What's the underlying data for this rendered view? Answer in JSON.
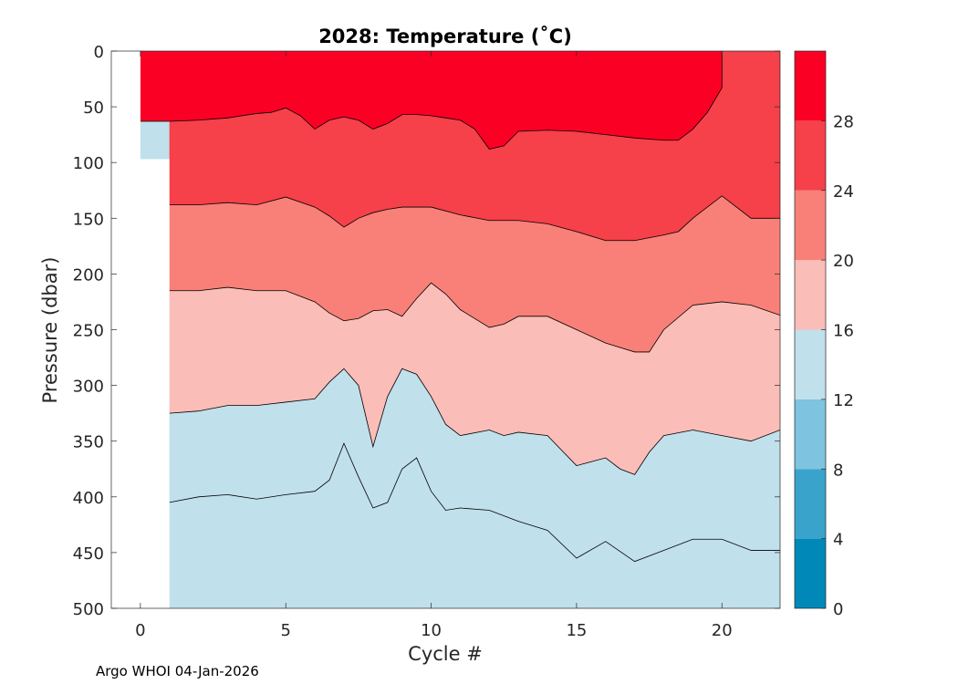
{
  "chart_data": {
    "type": "filled-contour",
    "title": "2028:  Temperature (˚C)",
    "xlabel": "Cycle #",
    "ylabel": "Pressure (dbar)",
    "xlim": [
      -1,
      22
    ],
    "ylim": [
      0,
      500
    ],
    "y_reversed": true,
    "xticks": [
      0,
      5,
      10,
      15,
      20
    ],
    "yticks": [
      0,
      50,
      100,
      150,
      200,
      250,
      300,
      350,
      400,
      450,
      500
    ],
    "colorbar": {
      "ticks": [
        0,
        4,
        8,
        12,
        16,
        20,
        24,
        28
      ],
      "range": [
        0,
        32
      ],
      "bands": [
        {
          "from": 0,
          "to": 4,
          "color": "#0089b8"
        },
        {
          "from": 4,
          "to": 8,
          "color": "#3aa3cb"
        },
        {
          "from": 8,
          "to": 12,
          "color": "#7ec3df"
        },
        {
          "from": 12,
          "to": 16,
          "color": "#c0e0ec"
        },
        {
          "from": 16,
          "to": 20,
          "color": "#fbbdb7"
        },
        {
          "from": 20,
          "to": 24,
          "color": "#f88078"
        },
        {
          "from": 24,
          "to": 28,
          "color": "#f6404a"
        },
        {
          "from": 28,
          "to": 32,
          "color": "#fb0025"
        }
      ]
    },
    "data_coverage": [
      {
        "cycle": 0,
        "max_pressure": 97
      },
      {
        "cycle": 1,
        "max_pressure": 500
      }
    ],
    "isotherms": [
      {
        "temp": 28,
        "points": [
          [
            0,
            63
          ],
          [
            1,
            63
          ],
          [
            2,
            62
          ],
          [
            3,
            60
          ],
          [
            4,
            56
          ],
          [
            4.5,
            55
          ],
          [
            5,
            51
          ],
          [
            5.5,
            58
          ],
          [
            6,
            70
          ],
          [
            6.5,
            62
          ],
          [
            7,
            59
          ],
          [
            7.5,
            62
          ],
          [
            8,
            70
          ],
          [
            8.5,
            65
          ],
          [
            9,
            57
          ],
          [
            9.5,
            57
          ],
          [
            10,
            58
          ],
          [
            10.5,
            60
          ],
          [
            11,
            62
          ],
          [
            11.5,
            70
          ],
          [
            12,
            88
          ],
          [
            12.5,
            85
          ],
          [
            13,
            72
          ],
          [
            14,
            71
          ],
          [
            15,
            72
          ],
          [
            16,
            75
          ],
          [
            17,
            78
          ],
          [
            18,
            80
          ],
          [
            18.5,
            80
          ],
          [
            19,
            70
          ],
          [
            19.5,
            55
          ],
          [
            20,
            33
          ],
          [
            20,
            0
          ]
        ]
      },
      {
        "temp": 24,
        "points": [
          [
            1,
            138
          ],
          [
            2,
            138
          ],
          [
            3,
            136
          ],
          [
            4,
            138
          ],
          [
            5,
            131
          ],
          [
            6,
            140
          ],
          [
            6.5,
            148
          ],
          [
            7,
            158
          ],
          [
            7.5,
            150
          ],
          [
            8,
            145
          ],
          [
            8.5,
            142
          ],
          [
            9,
            140
          ],
          [
            10,
            140
          ],
          [
            11,
            147
          ],
          [
            12,
            152
          ],
          [
            13,
            152
          ],
          [
            14,
            155
          ],
          [
            15,
            162
          ],
          [
            16,
            170
          ],
          [
            17,
            170
          ],
          [
            18,
            165
          ],
          [
            18.5,
            162
          ],
          [
            19,
            150
          ],
          [
            20,
            130
          ],
          [
            20.5,
            140
          ],
          [
            21,
            150
          ],
          [
            22,
            150
          ]
        ]
      },
      {
        "temp": 20,
        "points": [
          [
            1,
            215
          ],
          [
            2,
            215
          ],
          [
            3,
            212
          ],
          [
            4,
            215
          ],
          [
            5,
            215
          ],
          [
            6,
            225
          ],
          [
            6.5,
            235
          ],
          [
            7,
            242
          ],
          [
            7.5,
            240
          ],
          [
            8,
            233
          ],
          [
            8.5,
            232
          ],
          [
            9,
            238
          ],
          [
            9.5,
            222
          ],
          [
            10,
            208
          ],
          [
            10.5,
            218
          ],
          [
            11,
            232
          ],
          [
            12,
            248
          ],
          [
            12.5,
            245
          ],
          [
            13,
            238
          ],
          [
            14,
            238
          ],
          [
            15,
            250
          ],
          [
            16,
            262
          ],
          [
            17,
            270
          ],
          [
            17.5,
            270
          ],
          [
            18,
            250
          ],
          [
            19,
            228
          ],
          [
            20,
            225
          ],
          [
            21,
            228
          ],
          [
            22,
            237
          ]
        ]
      },
      {
        "temp": 16,
        "points": [
          [
            1,
            325
          ],
          [
            2,
            323
          ],
          [
            3,
            318
          ],
          [
            4,
            318
          ],
          [
            5,
            315
          ],
          [
            6,
            312
          ],
          [
            6.5,
            297
          ],
          [
            7,
            285
          ],
          [
            7.5,
            300
          ],
          [
            8,
            355
          ],
          [
            8.5,
            310
          ],
          [
            9,
            285
          ],
          [
            9.5,
            290
          ],
          [
            10,
            310
          ],
          [
            10.5,
            335
          ],
          [
            11,
            345
          ],
          [
            12,
            340
          ],
          [
            12.5,
            345
          ],
          [
            13,
            342
          ],
          [
            14,
            345
          ],
          [
            15,
            372
          ],
          [
            16,
            365
          ],
          [
            16.5,
            375
          ],
          [
            17,
            380
          ],
          [
            17.5,
            360
          ],
          [
            18,
            345
          ],
          [
            19,
            340
          ],
          [
            20,
            345
          ],
          [
            21,
            350
          ],
          [
            22,
            340
          ]
        ]
      },
      {
        "temp": 12,
        "points": [
          [
            1,
            405
          ],
          [
            2,
            400
          ],
          [
            3,
            398
          ],
          [
            4,
            402
          ],
          [
            5,
            398
          ],
          [
            6,
            395
          ],
          [
            6.5,
            385
          ],
          [
            7,
            352
          ],
          [
            7.5,
            382
          ],
          [
            8,
            410
          ],
          [
            8.5,
            405
          ],
          [
            9,
            375
          ],
          [
            9.5,
            365
          ],
          [
            10,
            395
          ],
          [
            10.5,
            412
          ],
          [
            11,
            410
          ],
          [
            12,
            412
          ],
          [
            13,
            422
          ],
          [
            14,
            430
          ],
          [
            15,
            455
          ],
          [
            16,
            440
          ],
          [
            17,
            458
          ],
          [
            18,
            448
          ],
          [
            19,
            438
          ],
          [
            20,
            438
          ],
          [
            21,
            448
          ],
          [
            22,
            448
          ]
        ]
      }
    ]
  },
  "footer_text": "Argo WHOI 04-Jan-2026"
}
